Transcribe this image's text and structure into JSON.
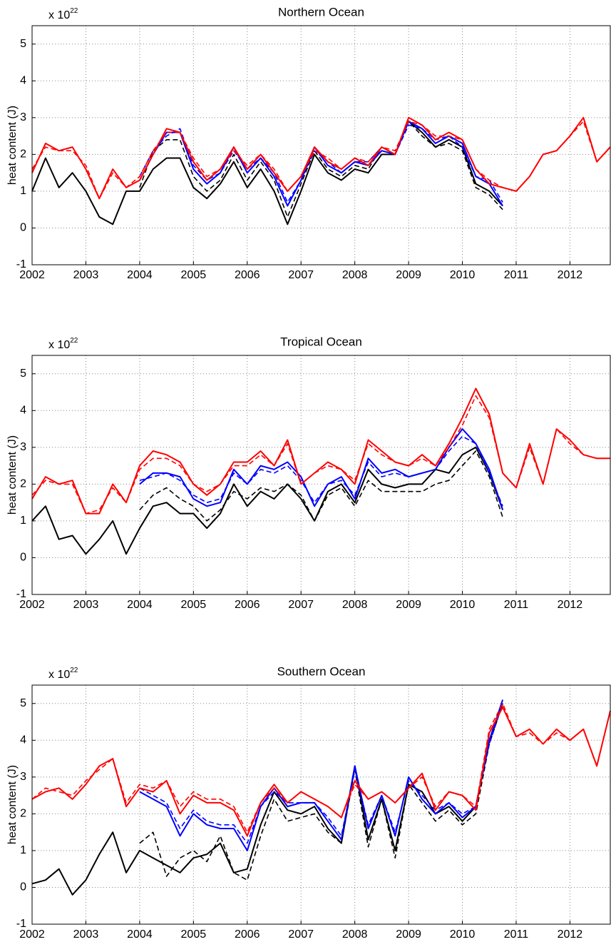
{
  "chart_data": [
    {
      "type": "line",
      "title": "Northern Ocean",
      "ylabel": "heat content (J)",
      "y_multiplier_base": "x 10",
      "y_multiplier_exponent": "22",
      "x": [
        2002.0,
        2002.25,
        2002.5,
        2002.75,
        2003.0,
        2003.25,
        2003.5,
        2003.75,
        2004.0,
        2004.25,
        2004.5,
        2004.75,
        2005.0,
        2005.25,
        2005.5,
        2005.75,
        2006.0,
        2006.25,
        2006.5,
        2006.75,
        2007.0,
        2007.25,
        2007.5,
        2007.75,
        2008.0,
        2008.25,
        2008.5,
        2008.75,
        2009.0,
        2009.25,
        2009.5,
        2009.75,
        2010.0,
        2010.25,
        2010.5,
        2010.75,
        2011.0,
        2011.25,
        2011.5,
        2011.75,
        2012.0,
        2012.25,
        2012.5,
        2012.75
      ],
      "xlim": [
        2002,
        2012.75
      ],
      "ylim": [
        -1,
        5.5
      ],
      "xticks": [
        2002,
        2003,
        2004,
        2005,
        2006,
        2007,
        2008,
        2009,
        2010,
        2011,
        2012
      ],
      "yticks": [
        -1,
        0,
        1,
        2,
        3,
        4,
        5
      ],
      "grid": true,
      "series": [
        {
          "color": "#000000",
          "dash": false,
          "values": [
            1.0,
            1.9,
            1.1,
            1.5,
            1.0,
            0.3,
            0.1,
            1.0,
            1.0,
            1.6,
            1.9,
            1.9,
            1.1,
            0.8,
            1.2,
            1.8,
            1.1,
            1.6,
            1.0,
            0.1,
            1.0,
            2.0,
            1.5,
            1.3,
            1.6,
            1.5,
            2.0,
            2.0,
            2.9,
            2.6,
            2.2,
            2.4,
            2.2,
            1.2,
            1.0,
            0.6,
            null,
            null,
            null,
            null,
            null,
            null,
            null,
            null
          ]
        },
        {
          "color": "#000000",
          "dash": true,
          "values": [
            null,
            null,
            null,
            null,
            null,
            null,
            null,
            null,
            1.1,
            2.1,
            2.4,
            2.4,
            1.4,
            1.0,
            1.3,
            2.0,
            1.3,
            1.8,
            1.3,
            0.3,
            1.2,
            2.1,
            1.6,
            1.4,
            1.7,
            1.6,
            2.2,
            2.0,
            2.9,
            2.5,
            2.2,
            2.3,
            2.1,
            1.1,
            0.9,
            0.5,
            null,
            null,
            null,
            null,
            null,
            null,
            null,
            null
          ]
        },
        {
          "color": "#0000ff",
          "dash": false,
          "values": [
            null,
            null,
            null,
            null,
            null,
            null,
            null,
            null,
            1.3,
            2.0,
            2.6,
            2.6,
            1.6,
            1.2,
            1.5,
            2.2,
            1.5,
            1.9,
            1.4,
            0.6,
            1.3,
            2.2,
            1.7,
            1.5,
            1.8,
            1.7,
            2.1,
            2.0,
            2.9,
            2.7,
            2.3,
            2.5,
            2.3,
            1.4,
            1.2,
            0.6,
            null,
            null,
            null,
            null,
            null,
            null,
            null,
            null
          ]
        },
        {
          "color": "#0000ff",
          "dash": true,
          "values": [
            null,
            null,
            null,
            null,
            null,
            null,
            null,
            null,
            1.4,
            2.1,
            2.5,
            2.7,
            1.7,
            1.3,
            1.5,
            2.1,
            1.6,
            1.9,
            1.5,
            0.7,
            1.3,
            2.1,
            1.8,
            1.5,
            1.8,
            1.8,
            2.2,
            2.0,
            2.8,
            2.7,
            2.4,
            2.5,
            2.2,
            1.4,
            1.3,
            0.7,
            null,
            null,
            null,
            null,
            null,
            null,
            null,
            null
          ]
        },
        {
          "color": "#ff0000",
          "dash": false,
          "values": [
            1.5,
            2.3,
            2.1,
            2.2,
            1.6,
            0.8,
            1.6,
            1.1,
            1.3,
            2.0,
            2.7,
            2.6,
            1.8,
            1.3,
            1.6,
            2.2,
            1.6,
            2.0,
            1.5,
            1.0,
            1.4,
            2.2,
            1.8,
            1.6,
            1.9,
            1.7,
            2.2,
            2.0,
            3.0,
            2.8,
            2.4,
            2.6,
            2.4,
            1.6,
            1.2,
            1.1,
            1.0,
            1.4,
            2.0,
            2.1,
            2.5,
            3.0,
            1.8,
            2.2
          ]
        },
        {
          "color": "#ff0000",
          "dash": true,
          "values": [
            1.6,
            2.2,
            2.1,
            2.1,
            1.7,
            0.8,
            1.5,
            1.1,
            1.4,
            2.1,
            2.6,
            2.6,
            1.9,
            1.4,
            1.6,
            2.1,
            1.7,
            2.0,
            1.6,
            1.0,
            1.4,
            2.1,
            1.9,
            1.6,
            1.9,
            1.8,
            2.2,
            2.1,
            2.9,
            2.8,
            2.5,
            2.5,
            2.4,
            1.6,
            1.3,
            1.1,
            1.0,
            1.4,
            2.0,
            2.1,
            2.5,
            2.9,
            1.8,
            2.2
          ]
        }
      ]
    },
    {
      "type": "line",
      "title": "Tropical Ocean",
      "ylabel": "heat content (J)",
      "y_multiplier_base": "x 10",
      "y_multiplier_exponent": "22",
      "x": [
        2002.0,
        2002.25,
        2002.5,
        2002.75,
        2003.0,
        2003.25,
        2003.5,
        2003.75,
        2004.0,
        2004.25,
        2004.5,
        2004.75,
        2005.0,
        2005.25,
        2005.5,
        2005.75,
        2006.0,
        2006.25,
        2006.5,
        2006.75,
        2007.0,
        2007.25,
        2007.5,
        2007.75,
        2008.0,
        2008.25,
        2008.5,
        2008.75,
        2009.0,
        2009.25,
        2009.5,
        2009.75,
        2010.0,
        2010.25,
        2010.5,
        2010.75,
        2011.0,
        2011.25,
        2011.5,
        2011.75,
        2012.0,
        2012.25,
        2012.5,
        2012.75
      ],
      "xlim": [
        2002,
        2012.75
      ],
      "ylim": [
        -1,
        5.5
      ],
      "xticks": [
        2002,
        2003,
        2004,
        2005,
        2006,
        2007,
        2008,
        2009,
        2010,
        2011,
        2012
      ],
      "yticks": [
        -1,
        0,
        1,
        2,
        3,
        4,
        5
      ],
      "grid": true,
      "series": [
        {
          "color": "#000000",
          "dash": false,
          "values": [
            1.0,
            1.4,
            0.5,
            0.6,
            0.1,
            0.5,
            1.0,
            0.1,
            0.8,
            1.4,
            1.5,
            1.2,
            1.2,
            0.8,
            1.2,
            2.0,
            1.4,
            1.8,
            1.6,
            2.0,
            1.6,
            1.0,
            1.8,
            2.0,
            1.5,
            2.4,
            2.0,
            1.9,
            2.0,
            2.0,
            2.4,
            2.3,
            2.8,
            3.0,
            2.3,
            1.3,
            null,
            null,
            null,
            null,
            null,
            null,
            null,
            null
          ]
        },
        {
          "color": "#000000",
          "dash": true,
          "values": [
            null,
            null,
            null,
            null,
            null,
            null,
            null,
            null,
            1.3,
            1.7,
            1.9,
            1.6,
            1.4,
            1.0,
            1.3,
            1.8,
            1.6,
            1.9,
            1.8,
            2.0,
            1.7,
            1.0,
            1.7,
            1.9,
            1.4,
            2.1,
            1.8,
            1.8,
            1.8,
            1.8,
            2.0,
            2.1,
            2.5,
            2.9,
            2.2,
            1.1,
            null,
            null,
            null,
            null,
            null,
            null,
            null,
            null
          ]
        },
        {
          "color": "#0000ff",
          "dash": false,
          "values": [
            null,
            null,
            null,
            null,
            null,
            null,
            null,
            null,
            2.0,
            2.3,
            2.3,
            2.2,
            1.6,
            1.4,
            1.5,
            2.4,
            2.0,
            2.5,
            2.4,
            2.6,
            2.2,
            1.4,
            2.0,
            2.2,
            1.6,
            2.7,
            2.3,
            2.4,
            2.2,
            2.3,
            2.4,
            3.0,
            3.5,
            3.1,
            2.4,
            1.3,
            null,
            null,
            null,
            null,
            null,
            null,
            null,
            null
          ]
        },
        {
          "color": "#0000ff",
          "dash": true,
          "values": [
            null,
            null,
            null,
            null,
            null,
            null,
            null,
            null,
            2.1,
            2.2,
            2.3,
            2.1,
            1.7,
            1.5,
            1.6,
            2.3,
            2.0,
            2.4,
            2.3,
            2.5,
            2.1,
            1.5,
            2.0,
            2.1,
            1.7,
            2.6,
            2.2,
            2.3,
            2.2,
            2.3,
            2.4,
            2.9,
            3.3,
            3.1,
            2.3,
            1.4,
            null,
            null,
            null,
            null,
            null,
            null,
            null,
            null
          ]
        },
        {
          "color": "#ff0000",
          "dash": false,
          "values": [
            1.6,
            2.2,
            2.0,
            2.1,
            1.2,
            1.2,
            2.0,
            1.5,
            2.5,
            2.9,
            2.8,
            2.6,
            2.0,
            1.7,
            2.0,
            2.6,
            2.6,
            2.9,
            2.5,
            3.2,
            2.0,
            2.3,
            2.6,
            2.4,
            2.0,
            3.2,
            2.9,
            2.6,
            2.5,
            2.8,
            2.5,
            3.1,
            3.8,
            4.6,
            3.9,
            2.3,
            1.9,
            3.1,
            2.0,
            3.5,
            3.2,
            2.8,
            2.7,
            2.7
          ]
        },
        {
          "color": "#ff0000",
          "dash": true,
          "values": [
            1.7,
            2.1,
            2.0,
            2.0,
            1.2,
            1.3,
            1.9,
            1.5,
            2.4,
            2.7,
            2.7,
            2.5,
            2.0,
            1.8,
            2.0,
            2.5,
            2.5,
            2.8,
            2.5,
            3.1,
            2.0,
            2.3,
            2.5,
            2.4,
            2.1,
            3.1,
            2.8,
            2.6,
            2.5,
            2.7,
            2.5,
            3.0,
            3.6,
            4.4,
            3.8,
            2.3,
            1.9,
            3.0,
            2.0,
            3.5,
            3.1,
            2.8,
            2.7,
            2.7
          ]
        }
      ]
    },
    {
      "type": "line",
      "title": "Southern Ocean",
      "ylabel": "heat content (J)",
      "y_multiplier_base": "x 10",
      "y_multiplier_exponent": "22",
      "x": [
        2002.0,
        2002.25,
        2002.5,
        2002.75,
        2003.0,
        2003.25,
        2003.5,
        2003.75,
        2004.0,
        2004.25,
        2004.5,
        2004.75,
        2005.0,
        2005.25,
        2005.5,
        2005.75,
        2006.0,
        2006.25,
        2006.5,
        2006.75,
        2007.0,
        2007.25,
        2007.5,
        2007.75,
        2008.0,
        2008.25,
        2008.5,
        2008.75,
        2009.0,
        2009.25,
        2009.5,
        2009.75,
        2010.0,
        2010.25,
        2010.5,
        2010.75,
        2011.0,
        2011.25,
        2011.5,
        2011.75,
        2012.0,
        2012.25,
        2012.5,
        2012.75
      ],
      "xlim": [
        2002,
        2012.75
      ],
      "ylim": [
        -1,
        5.5
      ],
      "xticks": [
        2002,
        2003,
        2004,
        2005,
        2006,
        2007,
        2008,
        2009,
        2010,
        2011,
        2012
      ],
      "yticks": [
        -1,
        0,
        1,
        2,
        3,
        4,
        5
      ],
      "grid": true,
      "series": [
        {
          "color": "#000000",
          "dash": false,
          "values": [
            0.1,
            0.2,
            0.5,
            -0.2,
            0.2,
            0.9,
            1.5,
            0.4,
            1.0,
            0.8,
            0.6,
            0.4,
            0.8,
            0.9,
            1.2,
            0.4,
            0.5,
            1.7,
            2.6,
            2.1,
            2.0,
            2.2,
            1.6,
            1.2,
            3.3,
            1.3,
            2.4,
            1.0,
            2.8,
            2.6,
            2.0,
            2.2,
            1.8,
            2.2,
            4.0,
            5.0,
            null,
            null,
            null,
            null,
            null,
            null,
            null,
            null
          ]
        },
        {
          "color": "#000000",
          "dash": true,
          "values": [
            null,
            null,
            null,
            null,
            null,
            null,
            null,
            null,
            1.2,
            1.5,
            0.3,
            0.8,
            1.0,
            0.7,
            1.4,
            0.4,
            0.2,
            1.4,
            2.4,
            1.8,
            1.9,
            2.0,
            1.5,
            1.2,
            3.2,
            1.1,
            2.4,
            0.8,
            2.8,
            2.3,
            1.8,
            2.1,
            1.7,
            2.0,
            3.9,
            5.0,
            null,
            null,
            null,
            null,
            null,
            null,
            null,
            null
          ]
        },
        {
          "color": "#0000ff",
          "dash": false,
          "values": [
            null,
            null,
            null,
            null,
            null,
            null,
            null,
            null,
            2.6,
            2.4,
            2.2,
            1.4,
            2.0,
            1.7,
            1.6,
            1.6,
            1.0,
            2.2,
            2.7,
            2.2,
            2.3,
            2.3,
            1.8,
            1.3,
            3.3,
            1.6,
            2.5,
            1.4,
            3.0,
            2.4,
            2.0,
            2.3,
            1.9,
            2.2,
            4.0,
            5.1,
            null,
            null,
            null,
            null,
            null,
            null,
            null,
            null
          ]
        },
        {
          "color": "#0000ff",
          "dash": true,
          "values": [
            null,
            null,
            null,
            null,
            null,
            null,
            null,
            null,
            2.7,
            2.5,
            2.3,
            1.6,
            2.1,
            1.8,
            1.7,
            1.7,
            1.2,
            2.2,
            2.6,
            2.3,
            2.3,
            2.3,
            1.9,
            1.4,
            3.2,
            1.7,
            2.5,
            1.5,
            2.9,
            2.5,
            2.1,
            2.3,
            2.0,
            2.2,
            3.9,
            5.0,
            null,
            null,
            null,
            null,
            null,
            null,
            null,
            null
          ]
        },
        {
          "color": "#ff0000",
          "dash": false,
          "values": [
            2.4,
            2.6,
            2.7,
            2.4,
            2.8,
            3.3,
            3.5,
            2.2,
            2.7,
            2.6,
            2.9,
            2.0,
            2.5,
            2.3,
            2.3,
            2.1,
            1.4,
            2.3,
            2.8,
            2.3,
            2.6,
            2.4,
            2.2,
            1.9,
            2.9,
            2.4,
            2.6,
            2.3,
            2.7,
            3.1,
            2.1,
            2.6,
            2.5,
            2.1,
            4.2,
            4.9,
            4.1,
            4.3,
            3.9,
            4.3,
            4.0,
            4.3,
            3.3,
            4.8
          ]
        },
        {
          "color": "#ff0000",
          "dash": true,
          "values": [
            2.4,
            2.7,
            2.6,
            2.5,
            2.9,
            3.2,
            3.5,
            2.3,
            2.8,
            2.7,
            2.9,
            2.2,
            2.6,
            2.4,
            2.4,
            2.2,
            1.5,
            2.3,
            2.7,
            2.3,
            2.6,
            2.4,
            2.2,
            1.9,
            2.8,
            2.4,
            2.6,
            2.3,
            2.7,
            3.0,
            2.2,
            2.6,
            2.5,
            2.2,
            4.3,
            5.0,
            4.1,
            4.2,
            3.9,
            4.2,
            4.0,
            4.3,
            3.3,
            4.8
          ]
        }
      ]
    }
  ]
}
